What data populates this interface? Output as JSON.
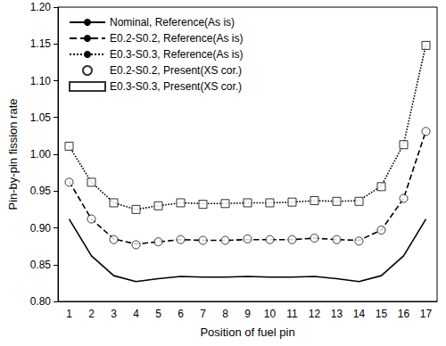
{
  "chart_data": {
    "type": "line",
    "x_label": "Position of fuel pin",
    "y_label": "Pin-by-pin fission rate",
    "categories": [
      "1",
      "2",
      "3",
      "4",
      "5",
      "6",
      "7",
      "8",
      "9",
      "10",
      "11",
      "12",
      "13",
      "14",
      "15",
      "16",
      "17"
    ],
    "ylim": [
      0.8,
      1.2
    ],
    "yticks": [
      {
        "value": 0.8,
        "label": "0.80"
      },
      {
        "value": 0.85,
        "label": "0.85"
      },
      {
        "value": 0.9,
        "label": "0.90"
      },
      {
        "value": 0.95,
        "label": "0.95"
      },
      {
        "value": 1.0,
        "label": "1.00"
      },
      {
        "value": 1.05,
        "label": "1.05"
      },
      {
        "value": 1.1,
        "label": "1.10"
      },
      {
        "value": 1.15,
        "label": "1.15"
      },
      {
        "value": 1.2,
        "label": "1.20"
      }
    ],
    "grid": false,
    "legend": "upper left",
    "series": [
      {
        "name": "Nominal, Reference(As is)",
        "type": "line",
        "line_style": "solid",
        "color": "#000000",
        "values": [
          0.912,
          0.862,
          0.835,
          0.827,
          0.831,
          0.834,
          0.833,
          0.833,
          0.834,
          0.833,
          0.833,
          0.834,
          0.831,
          0.827,
          0.835,
          0.862,
          0.912
        ]
      },
      {
        "name": "E0.2-S0.2, Reference(As is)",
        "type": "line",
        "line_style": "dashed",
        "color": "#000000",
        "values": [
          0.963,
          0.912,
          0.885,
          0.878,
          0.881,
          0.884,
          0.883,
          0.883,
          0.884,
          0.884,
          0.884,
          0.886,
          0.884,
          0.883,
          0.897,
          0.94,
          1.032
        ]
      },
      {
        "name": "E0.3-S0.3, Reference(As is)",
        "type": "line",
        "line_style": "dotted",
        "color": "#000000",
        "values": [
          1.011,
          0.962,
          0.934,
          0.925,
          0.93,
          0.934,
          0.933,
          0.933,
          0.934,
          0.934,
          0.935,
          0.937,
          0.936,
          0.937,
          0.957,
          1.014,
          1.149
        ]
      },
      {
        "name": "E0.2-S0.2, Present(XS cor.)",
        "type": "scatter",
        "marker": "circle",
        "color": "#000000",
        "values": [
          0.962,
          0.912,
          0.884,
          0.877,
          0.881,
          0.884,
          0.883,
          0.883,
          0.885,
          0.884,
          0.884,
          0.886,
          0.884,
          0.882,
          0.897,
          0.94,
          1.031
        ]
      },
      {
        "name": "E0.3-S0.3, Present(XS cor.)",
        "type": "scatter",
        "marker": "square",
        "color": "#000000",
        "values": [
          1.011,
          0.962,
          0.934,
          0.925,
          0.93,
          0.934,
          0.932,
          0.933,
          0.934,
          0.934,
          0.935,
          0.937,
          0.936,
          0.936,
          0.956,
          1.013,
          1.148
        ]
      }
    ]
  }
}
